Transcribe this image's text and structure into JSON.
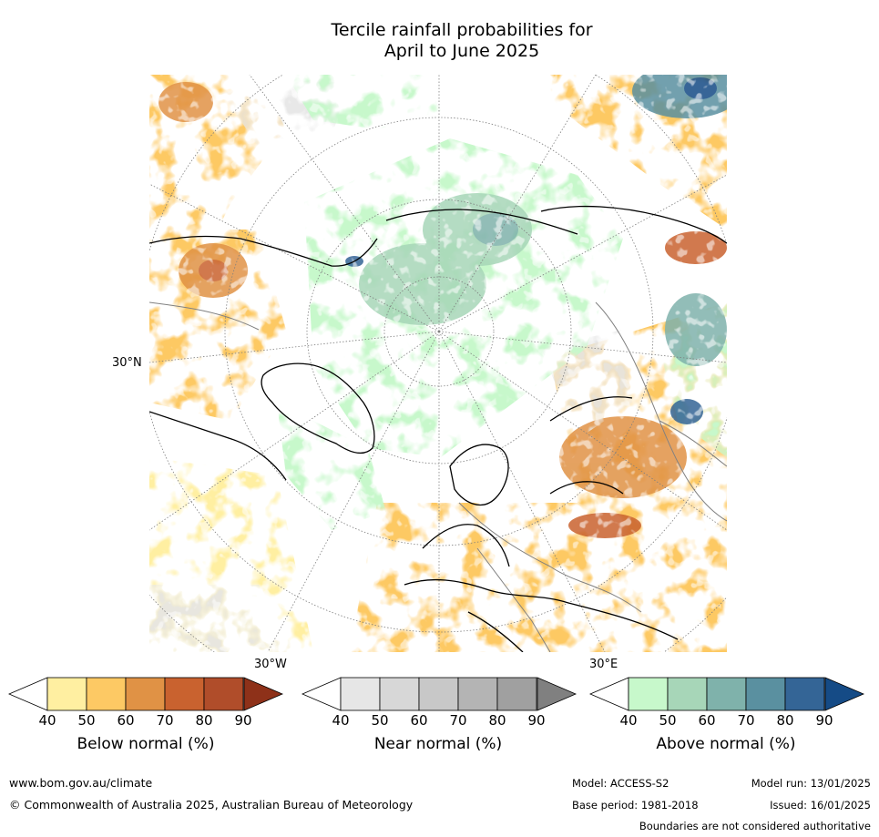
{
  "title": {
    "line1": "Tercile rainfall probabilities for",
    "line2": "April to June 2025"
  },
  "map": {
    "labels": {
      "lat30": "30°N",
      "lon30w": "30°W",
      "lon30e": "30°E"
    },
    "colors": {
      "ocean": "#ffffff",
      "grid": "#7f7f7f",
      "coast": "#000000",
      "border": "#808080"
    }
  },
  "colorbars": [
    {
      "name": "Below normal (%)",
      "ticks": [
        "40",
        "50",
        "60",
        "70",
        "80",
        "90"
      ],
      "colors": [
        "#ffefa1",
        "#fdc964",
        "#e09245",
        "#c9622f",
        "#b04d2a",
        "#8e3119"
      ]
    },
    {
      "name": "Near normal (%)",
      "ticks": [
        "40",
        "50",
        "60",
        "70",
        "80",
        "90"
      ],
      "colors": [
        "#e6e6e6",
        "#d7d7d7",
        "#c8c8c8",
        "#b4b4b4",
        "#a0a0a0",
        "#808080"
      ]
    },
    {
      "name": "Above normal (%)",
      "ticks": [
        "40",
        "50",
        "60",
        "70",
        "80",
        "90"
      ],
      "colors": [
        "#c7f8cb",
        "#a7d6b8",
        "#7fb2ab",
        "#5a90a0",
        "#346596",
        "#154b86"
      ]
    }
  ],
  "footer": {
    "website": "www.bom.gov.au/climate",
    "copyright": "© Commonwealth of Australia 2025, Australian Bureau of Meteorology",
    "model": "Model: ACCESS-S2",
    "base_period": "Base period: 1981-2018",
    "model_run": "Model run: 13/01/2025",
    "issued": "Issued: 16/01/2025",
    "disclaimer": "Boundaries are not considered authoritative"
  }
}
